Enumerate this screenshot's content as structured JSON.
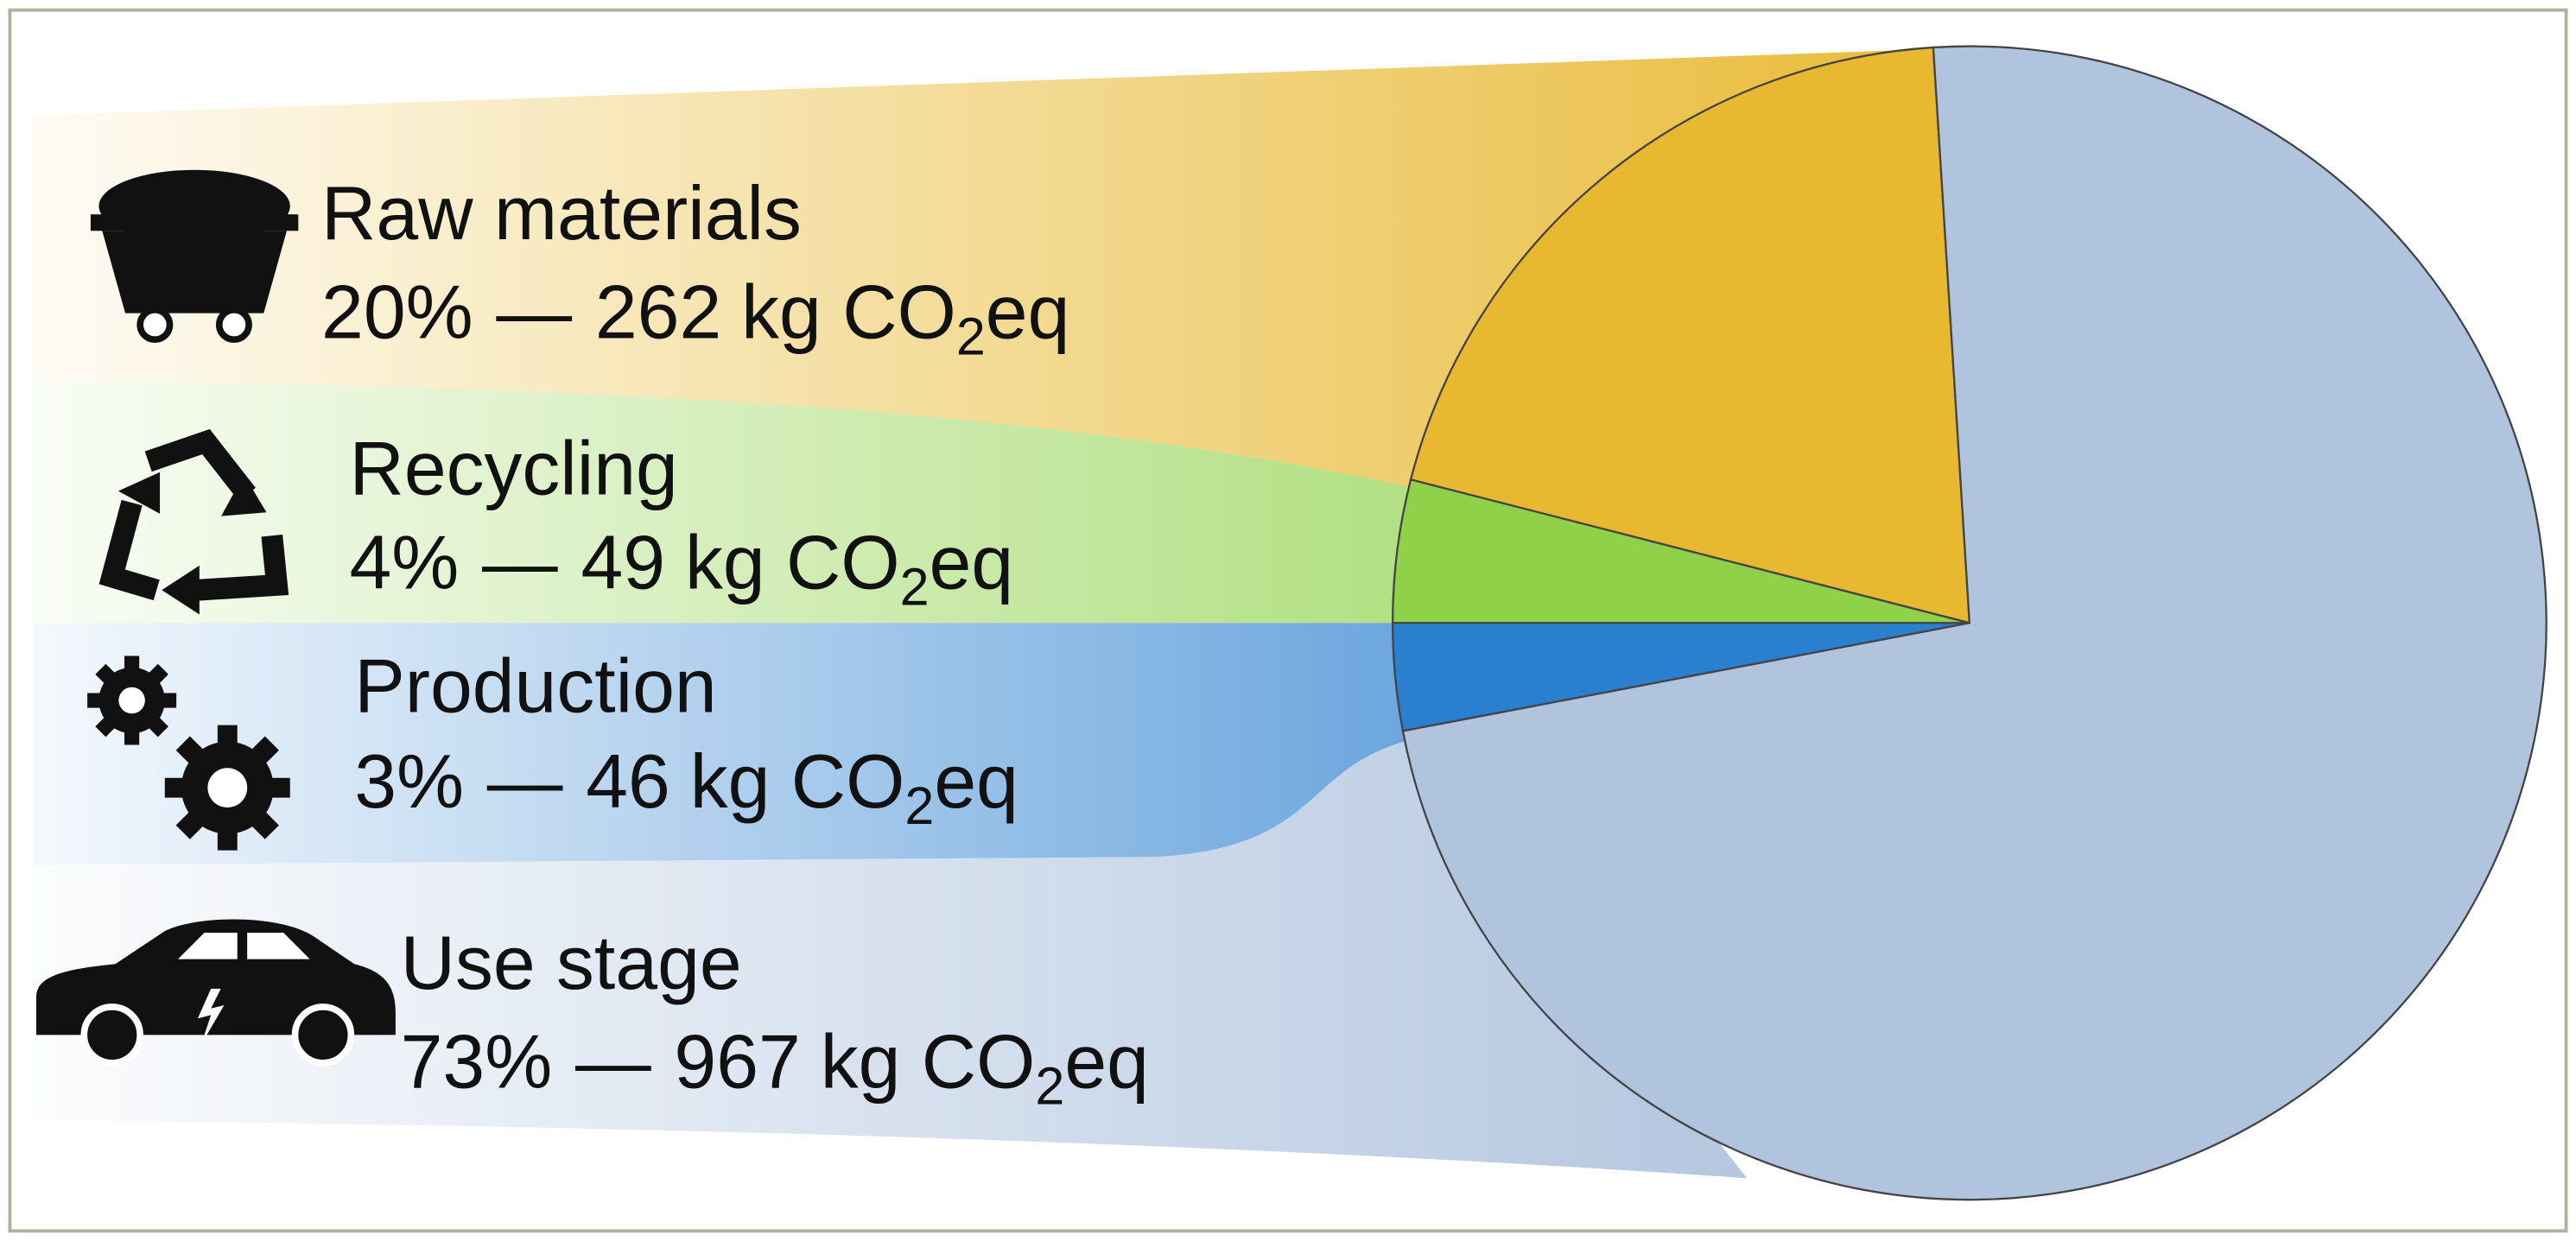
{
  "chart_data": {
    "type": "pie",
    "categories": [
      "Raw materials",
      "Recycling",
      "Production",
      "Use stage"
    ],
    "values": [
      20,
      4,
      3,
      73
    ],
    "value_labels": [
      "20%",
      "4%",
      "3%",
      "73%"
    ],
    "emissions": [
      262,
      49,
      46,
      967
    ],
    "separator": "—",
    "unit": "kg CO",
    "unit_subscript": "2",
    "unit_suffix": "eq",
    "colors": [
      "#e8b830",
      "#8fd24a",
      "#2a7fcf",
      "#b0c4de"
    ]
  }
}
